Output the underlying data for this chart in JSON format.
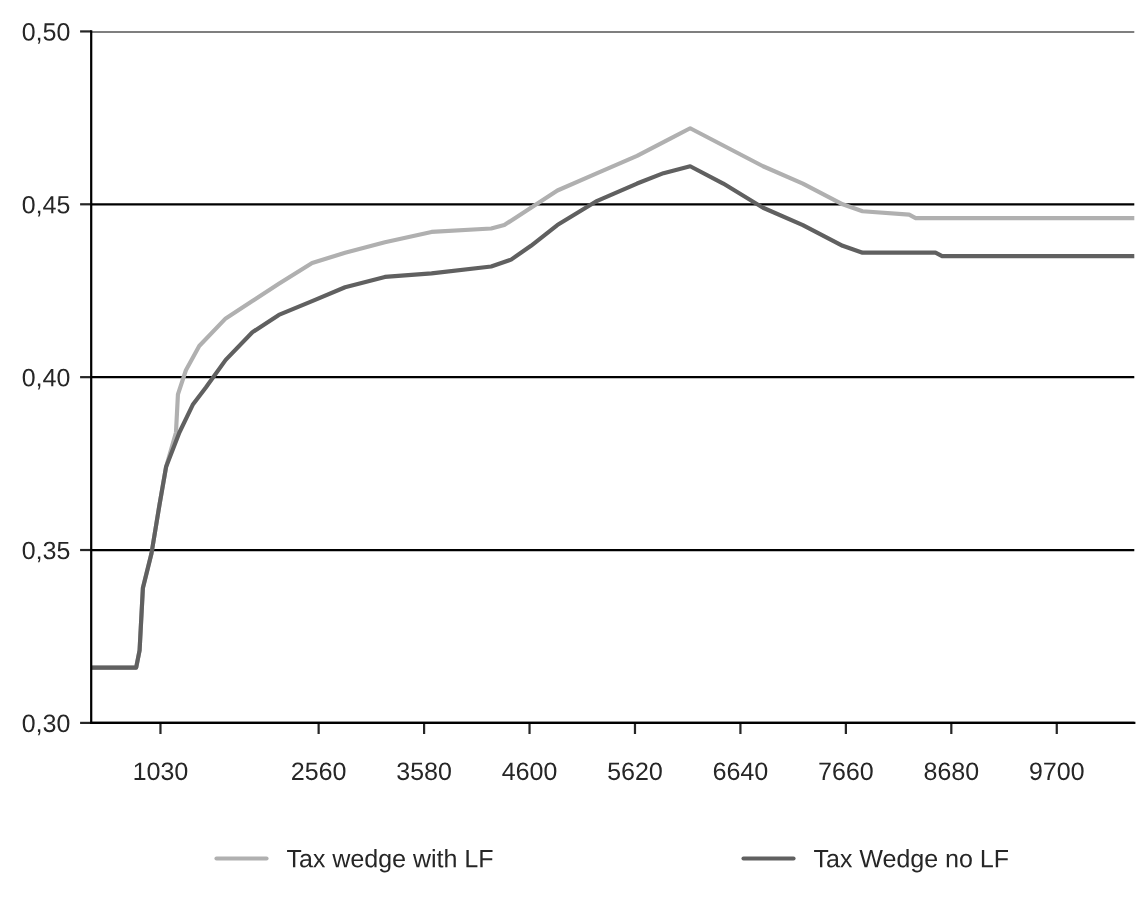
{
  "chart_data": {
    "type": "line",
    "xlim": [
      360,
      10450
    ],
    "xticks": [
      1030,
      2560,
      3580,
      4600,
      5620,
      6640,
      7660,
      8680,
      9700
    ],
    "ylim": [
      0.3,
      0.5
    ],
    "yticks": [
      {
        "value": 0.3,
        "label": "0,30"
      },
      {
        "value": 0.35,
        "label": "0,35"
      },
      {
        "value": 0.4,
        "label": "0,40"
      },
      {
        "value": 0.45,
        "label": "0,45"
      },
      {
        "value": 0.5,
        "label": "0,50"
      }
    ],
    "grid": "y",
    "legend": "bottom",
    "marker": "none",
    "line_style": "solid",
    "series": [
      {
        "name": "Tax wedge with LF",
        "color": "#b0b0b0",
        "x": [
          360,
          795,
          828,
          860,
          943,
          1020,
          1084,
          1180,
          1199,
          1276,
          1405,
          1661,
          1919,
          2175,
          2497,
          2816,
          3201,
          3652,
          4229,
          4356,
          4614,
          4870,
          5255,
          5640,
          5961,
          6154,
          6474,
          6859,
          7244,
          7629,
          7821,
          8272,
          8335,
          10450
        ],
        "values": [
          0.316,
          0.316,
          0.321,
          0.339,
          0.349,
          0.363,
          0.374,
          0.384,
          0.395,
          0.402,
          0.409,
          0.417,
          0.422,
          0.427,
          0.433,
          0.436,
          0.439,
          0.442,
          0.443,
          0.444,
          0.449,
          0.454,
          0.459,
          0.464,
          0.469,
          0.472,
          0.467,
          0.461,
          0.456,
          0.45,
          0.448,
          0.447,
          0.446,
          0.446
        ]
      },
      {
        "name": "Tax Wedge no LF",
        "color": "#606060",
        "x": [
          360,
          795,
          828,
          860,
          943,
          1020,
          1084,
          1213,
          1342,
          1469,
          1661,
          1919,
          2175,
          2497,
          2816,
          3201,
          3652,
          4229,
          4422,
          4614,
          4869,
          5255,
          5640,
          5896,
          6154,
          6474,
          6859,
          7244,
          7629,
          7821,
          8527,
          8591,
          10450
        ],
        "values": [
          0.316,
          0.316,
          0.321,
          0.339,
          0.349,
          0.363,
          0.374,
          0.384,
          0.392,
          0.397,
          0.405,
          0.413,
          0.418,
          0.422,
          0.426,
          0.429,
          0.43,
          0.432,
          0.434,
          0.438,
          0.444,
          0.451,
          0.456,
          0.459,
          0.461,
          0.456,
          0.449,
          0.444,
          0.438,
          0.436,
          0.436,
          0.435,
          0.435
        ]
      }
    ]
  }
}
